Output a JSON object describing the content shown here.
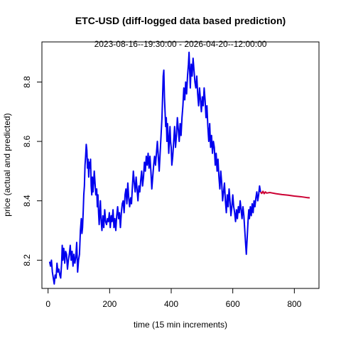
{
  "chart_data": {
    "type": "line",
    "title": "ETC-USD (diff-logged data based prediction)",
    "subtitle": "2023-08-16--19:30:00  -  2026-04-20--12:00:00",
    "xlabel": "time (15 min increments)",
    "ylabel": "price (actual and predicted)",
    "xlim": [
      -20,
      880
    ],
    "ylim": [
      8.105,
      8.935
    ],
    "xticks": [
      0,
      200,
      400,
      600,
      800
    ],
    "yticks": [
      8.2,
      8.4,
      8.6,
      8.8
    ],
    "grid": false,
    "legend": "none",
    "series": [
      {
        "color": "#0000ee",
        "points": [
          [
            5,
            8.195
          ],
          [
            8,
            8.18
          ],
          [
            11,
            8.2
          ],
          [
            14,
            8.16
          ],
          [
            17,
            8.14
          ],
          [
            20,
            8.12
          ],
          [
            23,
            8.15
          ],
          [
            26,
            8.14
          ],
          [
            29,
            8.19
          ],
          [
            32,
            8.16
          ],
          [
            35,
            8.17
          ],
          [
            38,
            8.15
          ],
          [
            41,
            8.14
          ],
          [
            44,
            8.19
          ],
          [
            46,
            8.25
          ],
          [
            48,
            8.2
          ],
          [
            51,
            8.24
          ],
          [
            54,
            8.19
          ],
          [
            57,
            8.23
          ],
          [
            60,
            8.22
          ],
          [
            63,
            8.17
          ],
          [
            66,
            8.2
          ],
          [
            69,
            8.22
          ],
          [
            72,
            8.25
          ],
          [
            75,
            8.2
          ],
          [
            78,
            8.23
          ],
          [
            81,
            8.18
          ],
          [
            84,
            8.22
          ],
          [
            87,
            8.19
          ],
          [
            90,
            8.21
          ],
          [
            93,
            8.26
          ],
          [
            96,
            8.16
          ],
          [
            99,
            8.2
          ],
          [
            102,
            8.22
          ],
          [
            105,
            8.3
          ],
          [
            108,
            8.34
          ],
          [
            110,
            8.29
          ],
          [
            112,
            8.31
          ],
          [
            114,
            8.36
          ],
          [
            116,
            8.42
          ],
          [
            118,
            8.45
          ],
          [
            120,
            8.52
          ],
          [
            122,
            8.55
          ],
          [
            124,
            8.59
          ],
          [
            126,
            8.57
          ],
          [
            128,
            8.51
          ],
          [
            130,
            8.54
          ],
          [
            132,
            8.48
          ],
          [
            134,
            8.53
          ],
          [
            136,
            8.51
          ],
          [
            138,
            8.54
          ],
          [
            140,
            8.45
          ],
          [
            142,
            8.42
          ],
          [
            144,
            8.48
          ],
          [
            146,
            8.43
          ],
          [
            148,
            8.46
          ],
          [
            150,
            8.5
          ],
          [
            152,
            8.47
          ],
          [
            155,
            8.42
          ],
          [
            158,
            8.44
          ],
          [
            160,
            8.38
          ],
          [
            162,
            8.42
          ],
          [
            164,
            8.36
          ],
          [
            166,
            8.32
          ],
          [
            168,
            8.36
          ],
          [
            170,
            8.4
          ],
          [
            172,
            8.34
          ],
          [
            175,
            8.3
          ],
          [
            178,
            8.35
          ],
          [
            181,
            8.31
          ],
          [
            184,
            8.37
          ],
          [
            187,
            8.33
          ],
          [
            190,
            8.32
          ],
          [
            193,
            8.34
          ],
          [
            196,
            8.33
          ],
          [
            199,
            8.36
          ],
          [
            202,
            8.31
          ],
          [
            205,
            8.35
          ],
          [
            208,
            8.33
          ],
          [
            211,
            8.37
          ],
          [
            214,
            8.31
          ],
          [
            217,
            8.34
          ],
          [
            220,
            8.3
          ],
          [
            223,
            8.35
          ],
          [
            226,
            8.38
          ],
          [
            229,
            8.34
          ],
          [
            232,
            8.36
          ],
          [
            235,
            8.31
          ],
          [
            238,
            8.36
          ],
          [
            241,
            8.39
          ],
          [
            244,
            8.4
          ],
          [
            247,
            8.36
          ],
          [
            250,
            8.42
          ],
          [
            253,
            8.44
          ],
          [
            256,
            8.39
          ],
          [
            259,
            8.46
          ],
          [
            262,
            8.41
          ],
          [
            265,
            8.38
          ],
          [
            268,
            8.41
          ],
          [
            271,
            8.39
          ],
          [
            274,
            8.45
          ],
          [
            277,
            8.5
          ],
          [
            280,
            8.46
          ],
          [
            283,
            8.43
          ],
          [
            286,
            8.48
          ],
          [
            289,
            8.44
          ],
          [
            292,
            8.4
          ],
          [
            295,
            8.45
          ],
          [
            298,
            8.43
          ],
          [
            301,
            8.47
          ],
          [
            304,
            8.5
          ],
          [
            307,
            8.45
          ],
          [
            310,
            8.48
          ],
          [
            313,
            8.53
          ],
          [
            316,
            8.5
          ],
          [
            319,
            8.55
          ],
          [
            322,
            8.52
          ],
          [
            325,
            8.56
          ],
          [
            328,
            8.51
          ],
          [
            331,
            8.55
          ],
          [
            334,
            8.5
          ],
          [
            337,
            8.44
          ],
          [
            340,
            8.48
          ],
          [
            343,
            8.52
          ],
          [
            346,
            8.55
          ],
          [
            349,
            8.52
          ],
          [
            352,
            8.56
          ],
          [
            355,
            8.6
          ],
          [
            358,
            8.55
          ],
          [
            361,
            8.5
          ],
          [
            364,
            8.56
          ],
          [
            367,
            8.62
          ],
          [
            370,
            8.68
          ],
          [
            372,
            8.75
          ],
          [
            374,
            8.82
          ],
          [
            376,
            8.84
          ],
          [
            378,
            8.75
          ],
          [
            380,
            8.7
          ],
          [
            382,
            8.65
          ],
          [
            384,
            8.68
          ],
          [
            386,
            8.6
          ],
          [
            388,
            8.66
          ],
          [
            390,
            8.62
          ],
          [
            392,
            8.56
          ],
          [
            394,
            8.6
          ],
          [
            396,
            8.65
          ],
          [
            398,
            8.6
          ],
          [
            400,
            8.58
          ],
          [
            402,
            8.52
          ],
          [
            405,
            8.55
          ],
          [
            408,
            8.6
          ],
          [
            411,
            8.65
          ],
          [
            414,
            8.58
          ],
          [
            417,
            8.62
          ],
          [
            420,
            8.68
          ],
          [
            423,
            8.64
          ],
          [
            426,
            8.6
          ],
          [
            429,
            8.66
          ],
          [
            432,
            8.62
          ],
          [
            435,
            8.68
          ],
          [
            438,
            8.72
          ],
          [
            441,
            8.78
          ],
          [
            444,
            8.74
          ],
          [
            447,
            8.8
          ],
          [
            450,
            8.76
          ],
          [
            453,
            8.82
          ],
          [
            456,
            8.86
          ],
          [
            458,
            8.9
          ],
          [
            460,
            8.84
          ],
          [
            462,
            8.78
          ],
          [
            465,
            8.86
          ],
          [
            468,
            8.82
          ],
          [
            471,
            8.88
          ],
          [
            474,
            8.84
          ],
          [
            477,
            8.8
          ],
          [
            480,
            8.78
          ],
          [
            483,
            8.82
          ],
          [
            486,
            8.76
          ],
          [
            489,
            8.72
          ],
          [
            492,
            8.78
          ],
          [
            495,
            8.74
          ],
          [
            498,
            8.7
          ],
          [
            501,
            8.75
          ],
          [
            504,
            8.72
          ],
          [
            507,
            8.78
          ],
          [
            510,
            8.74
          ],
          [
            513,
            8.68
          ],
          [
            516,
            8.72
          ],
          [
            519,
            8.65
          ],
          [
            522,
            8.6
          ],
          [
            525,
            8.66
          ],
          [
            528,
            8.58
          ],
          [
            531,
            8.62
          ],
          [
            534,
            8.56
          ],
          [
            537,
            8.6
          ],
          [
            540,
            8.58
          ],
          [
            543,
            8.52
          ],
          [
            546,
            8.56
          ],
          [
            549,
            8.5
          ],
          [
            552,
            8.54
          ],
          [
            555,
            8.48
          ],
          [
            558,
            8.44
          ],
          [
            561,
            8.5
          ],
          [
            564,
            8.46
          ],
          [
            567,
            8.4
          ],
          [
            570,
            8.43
          ],
          [
            573,
            8.46
          ],
          [
            576,
            8.4
          ],
          [
            579,
            8.36
          ],
          [
            582,
            8.42
          ],
          [
            585,
            8.38
          ],
          [
            588,
            8.44
          ],
          [
            591,
            8.4
          ],
          [
            594,
            8.35
          ],
          [
            597,
            8.38
          ],
          [
            600,
            8.42
          ],
          [
            603,
            8.38
          ],
          [
            606,
            8.36
          ],
          [
            609,
            8.33
          ],
          [
            612,
            8.37
          ],
          [
            615,
            8.34
          ],
          [
            618,
            8.38
          ],
          [
            621,
            8.36
          ],
          [
            624,
            8.4
          ],
          [
            627,
            8.37
          ],
          [
            630,
            8.34
          ],
          [
            633,
            8.38
          ],
          [
            636,
            8.35
          ],
          [
            639,
            8.3
          ],
          [
            642,
            8.25
          ],
          [
            644,
            8.22
          ],
          [
            646,
            8.26
          ],
          [
            648,
            8.3
          ],
          [
            650,
            8.34
          ],
          [
            652,
            8.37
          ],
          [
            654,
            8.34
          ],
          [
            657,
            8.38
          ],
          [
            660,
            8.35
          ],
          [
            663,
            8.39
          ],
          [
            666,
            8.36
          ],
          [
            669,
            8.4
          ],
          [
            672,
            8.38
          ],
          [
            675,
            8.41
          ],
          [
            678,
            8.43
          ],
          [
            681,
            8.4
          ],
          [
            684,
            8.42
          ],
          [
            687,
            8.45
          ],
          [
            690,
            8.43
          ]
        ]
      },
      {
        "color": "#cc0033",
        "points": [
          [
            690,
            8.43
          ],
          [
            694,
            8.425
          ],
          [
            698,
            8.432
          ],
          [
            702,
            8.424
          ],
          [
            706,
            8.43
          ],
          [
            710,
            8.426
          ],
          [
            720,
            8.428
          ],
          [
            740,
            8.424
          ],
          [
            760,
            8.421
          ],
          [
            780,
            8.419
          ],
          [
            800,
            8.416
          ],
          [
            820,
            8.414
          ],
          [
            840,
            8.411
          ],
          [
            850,
            8.41
          ]
        ]
      }
    ]
  }
}
